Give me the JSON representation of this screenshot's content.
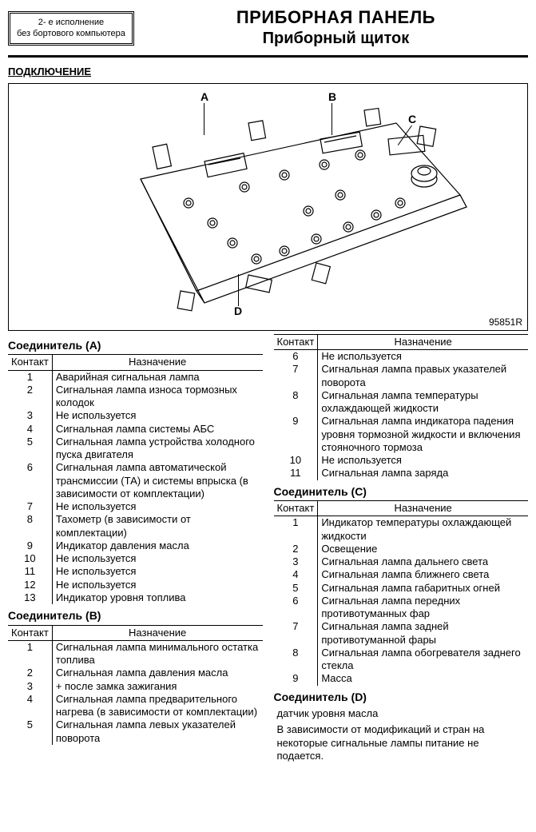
{
  "header": {
    "variant_line1": "2- е исполнение",
    "variant_line2": "без бортового компьютера",
    "title": "ПРИБОРНАЯ ПАНЕЛЬ",
    "subtitle": "Приборный щиток"
  },
  "section_label": "ПОДКЛЮЧЕНИЕ",
  "diagram": {
    "labels": {
      "A": "A",
      "B": "B",
      "C": "C",
      "D": "D"
    },
    "code": "95851R"
  },
  "tables": {
    "col_pin": "Контакт",
    "col_desc": "Назначение"
  },
  "connectors": {
    "A": {
      "title": "Соединитель (А)",
      "rows": [
        [
          "1",
          "Аварийная сигнальная лампа"
        ],
        [
          "2",
          "Сигнальная лампа износа тормозных колодок"
        ],
        [
          "3",
          "Не используется"
        ],
        [
          "4",
          "Сигнальная лампа системы АБС"
        ],
        [
          "5",
          "Сигнальная лампа устройства холодного пуска двигателя"
        ],
        [
          "6",
          "Сигнальная лампа автоматической трансмиссии (ТА) и системы впрыска (в зависимости от комплектации)"
        ],
        [
          "7",
          "Не используется"
        ],
        [
          "8",
          "Тахометр (в зависимости от комплектации)"
        ],
        [
          "9",
          "Индикатор давления масла"
        ],
        [
          "10",
          "Не используется"
        ],
        [
          "11",
          "Не используется"
        ],
        [
          "12",
          "Не используется"
        ],
        [
          "13",
          "Индикатор уровня топлива"
        ]
      ]
    },
    "B": {
      "title": "Соединитель (В)",
      "rows": [
        [
          "1",
          "Сигнальная лампа минимального остатка топлива"
        ],
        [
          "2",
          "Сигнальная лампа давления масла"
        ],
        [
          "3",
          "+ после замка зажигания"
        ],
        [
          "4",
          "Сигнальная лампа предварительного нагрева (в зависимости от комплектации)"
        ],
        [
          "5",
          "Сигнальная лампа левых указателей поворота"
        ]
      ]
    },
    "B2": {
      "title": "",
      "rows": [
        [
          "6",
          "Не используется"
        ],
        [
          "7",
          "Сигнальная лампа правых указателей поворота"
        ],
        [
          "8",
          "Сигнальная лампа температуры охлаждающей жидкости"
        ],
        [
          "9",
          "Сигнальная лампа индикатора падения уровня тормозной жидкости и включения стояночного тормоза"
        ],
        [
          "10",
          "Не используется"
        ],
        [
          "11",
          "Сигнальная лампа заряда"
        ]
      ]
    },
    "C": {
      "title": "Соединитель (С)",
      "rows": [
        [
          "1",
          "Индикатор температуры охлаждающей жидкости"
        ],
        [
          "2",
          "Освещение"
        ],
        [
          "3",
          "Сигнальная лампа дальнего света"
        ],
        [
          "4",
          "Сигнальная лампа ближнего света"
        ],
        [
          "5",
          "Сигнальная лампа габаритных огней"
        ],
        [
          "6",
          "Сигнальная лампа передних противотуманных фар"
        ],
        [
          "7",
          "Сигнальная лампа задней противотуманной фары"
        ],
        [
          "8",
          "Сигнальная лампа обогревателя заднего стекла"
        ],
        [
          "9",
          "Масса"
        ]
      ]
    },
    "D": {
      "title": "Соединитель (D)",
      "note1": "датчик уровня масла",
      "note2": "В зависимости от модификаций и стран на некоторые сигнальные лампы питание не подается."
    }
  }
}
